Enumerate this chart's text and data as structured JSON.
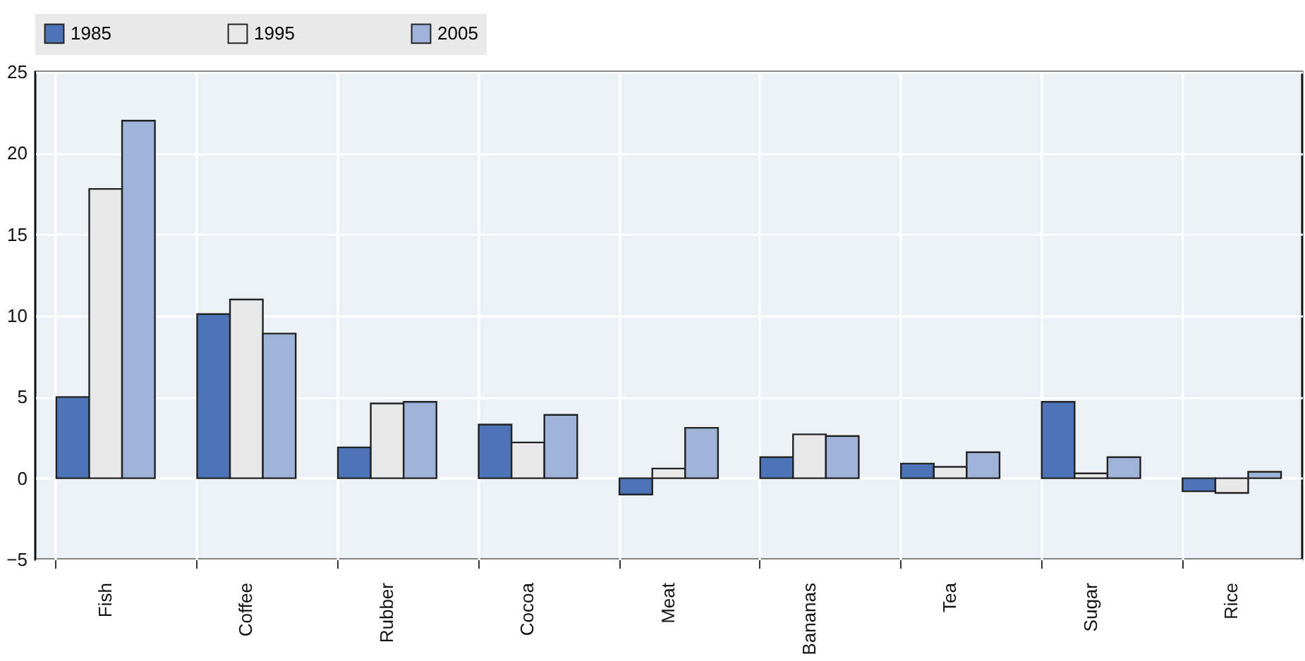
{
  "chart_data": {
    "type": "bar",
    "categories": [
      "Fish",
      "Coffee",
      "Rubber",
      "Cocoa",
      "Meat",
      "Bananas",
      "Tea",
      "Sugar",
      "Rice"
    ],
    "series": [
      {
        "name": "1985",
        "color": "#4e74b8",
        "values": [
          5.0,
          10.1,
          1.9,
          3.3,
          -1.0,
          1.3,
          0.9,
          4.7,
          -0.8
        ]
      },
      {
        "name": "1995",
        "color": "#e8e8e8",
        "values": [
          17.8,
          11.0,
          4.6,
          2.2,
          0.6,
          2.7,
          0.7,
          0.3,
          -0.9
        ]
      },
      {
        "name": "2005",
        "color": "#9fb3d8",
        "values": [
          22.0,
          8.9,
          4.7,
          3.9,
          3.1,
          2.6,
          1.6,
          1.3,
          0.4
        ]
      }
    ],
    "ylim": [
      -5,
      25
    ],
    "yticks": [
      -5,
      0,
      5,
      10,
      15,
      20,
      25
    ],
    "grid": true,
    "legend": "top"
  }
}
